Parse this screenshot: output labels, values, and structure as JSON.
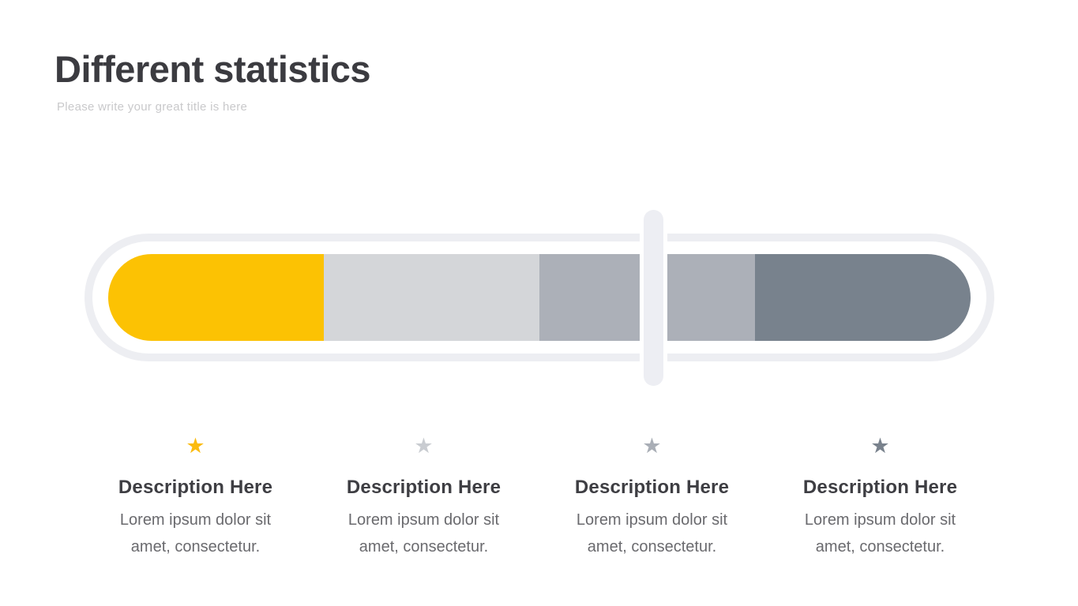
{
  "header": {
    "title": "Different statistics",
    "subtitle": "Please write your great title is here"
  },
  "progress": {
    "track_ring_color": "#EDEEF2",
    "segments": [
      {
        "label": "segment-1",
        "color": "#FCC203",
        "width": "25%"
      },
      {
        "label": "segment-2",
        "color": "#D4D6D9",
        "width": "25%"
      },
      {
        "label": "segment-3",
        "color": "#ACB0B8",
        "width": "25%"
      },
      {
        "label": "segment-4",
        "color": "#78828D",
        "width": "25%"
      }
    ],
    "handle": {
      "color": "#EDEEF3",
      "position_percent": "62"
    }
  },
  "icons": {
    "star": "★"
  },
  "columns": [
    {
      "star_color": "#FBBB0E",
      "title": "Description Here",
      "body": "Lorem ipsum dolor sit amet, consectetur."
    },
    {
      "star_color": "#C9CCD1",
      "title": "Description Here",
      "body": "Lorem ipsum dolor sit amet, consectetur."
    },
    {
      "star_color": "#A9AEB6",
      "title": "Description Here",
      "body": "Lorem ipsum dolor sit amet, consectetur."
    },
    {
      "star_color": "#79828D",
      "title": "Description Here",
      "body": "Lorem ipsum dolor sit amet, consectetur."
    }
  ]
}
